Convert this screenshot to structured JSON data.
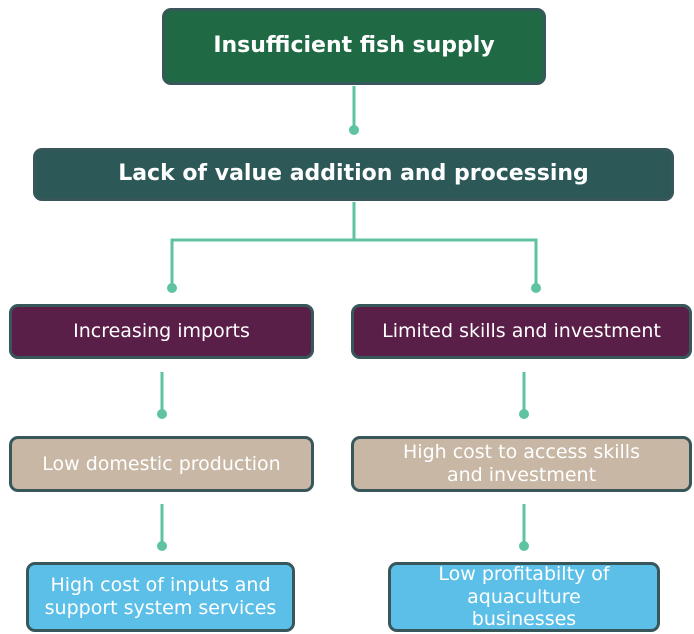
{
  "nodes": [
    {
      "label": "Insufficient fish supply"
    },
    {
      "label": "Lack of value addition and processing"
    },
    {
      "label": "Increasing imports"
    },
    {
      "label": "Limited skills and investment"
    },
    {
      "label": "Low domestic production"
    },
    {
      "label": "High cost to access skills and investment"
    },
    {
      "label": "High cost of inputs and support system services"
    },
    {
      "label": "Low profitabilty of aquaculture businesses"
    }
  ]
}
